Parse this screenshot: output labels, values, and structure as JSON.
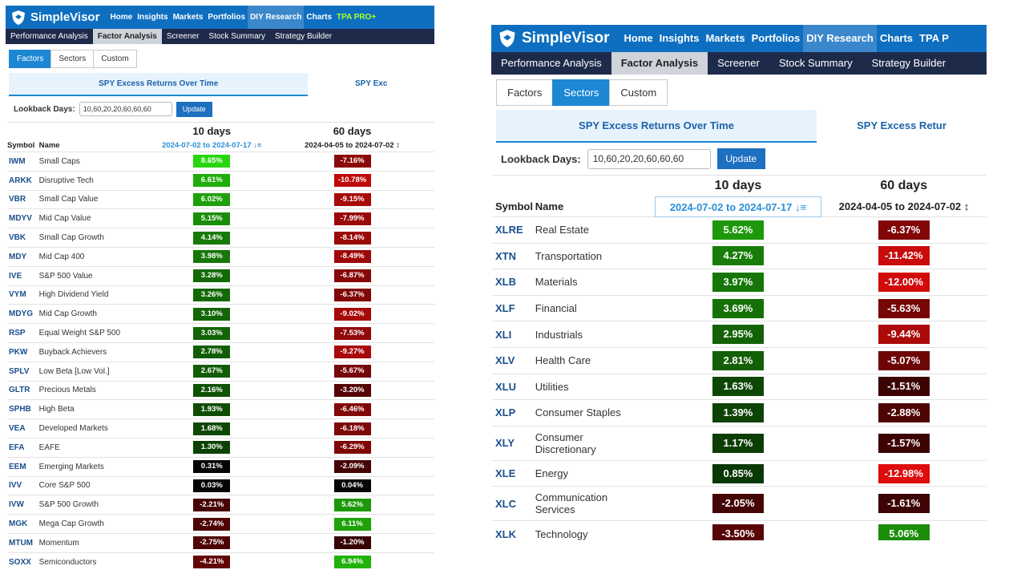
{
  "app": {
    "logo_text": "SimpleVisor",
    "nav": [
      {
        "label": "Home"
      },
      {
        "label": "Insights"
      },
      {
        "label": "Markets"
      },
      {
        "label": "Portfolios"
      },
      {
        "label": "DIY Research",
        "active": true
      },
      {
        "label": "Charts"
      }
    ],
    "nav_pro_left": "TPA PRO+",
    "nav_pro_right": "TPA P",
    "subnav": [
      {
        "label": "Performance Analysis"
      },
      {
        "label": "Factor Analysis",
        "active": true
      },
      {
        "label": "Screener"
      },
      {
        "label": "Stock Summary"
      },
      {
        "label": "Strategy Builder"
      }
    ],
    "accent": "#0e6fc0",
    "subnav_bg": "#1d2a4a"
  },
  "left": {
    "tabs": [
      {
        "label": "Factors",
        "active": true
      },
      {
        "label": "Sectors"
      },
      {
        "label": "Custom"
      }
    ],
    "view_tabs": [
      {
        "label": "SPY Excess Returns Over Time",
        "active": true
      },
      {
        "label": "SPY Exc"
      }
    ],
    "lookback": {
      "label": "Lookback Days:",
      "value": "10,60,20,20,60,60,60",
      "button": "Update"
    },
    "table": {
      "group_headers": [
        "10 days",
        "60 days"
      ],
      "col_symbol": "Symbol",
      "col_name": "Name",
      "date_range_1": "2024-07-02 to 2024-07-17",
      "date_range_2": "2024-04-05 to 2024-07-02",
      "rows": [
        {
          "symbol": "IWM",
          "name": "Small Caps",
          "r10": "8.65%",
          "r60": "-7.16%"
        },
        {
          "symbol": "ARKK",
          "name": "Disruptive Tech",
          "r10": "6.61%",
          "r60": "-10.78%"
        },
        {
          "symbol": "VBR",
          "name": "Small Cap Value",
          "r10": "6.02%",
          "r60": "-9.15%"
        },
        {
          "symbol": "MDYV",
          "name": "Mid Cap Value",
          "r10": "5.15%",
          "r60": "-7.99%"
        },
        {
          "symbol": "VBK",
          "name": "Small Cap Growth",
          "r10": "4.14%",
          "r60": "-8.14%"
        },
        {
          "symbol": "MDY",
          "name": "Mid Cap 400",
          "r10": "3.98%",
          "r60": "-8.49%"
        },
        {
          "symbol": "IVE",
          "name": "S&P 500 Value",
          "r10": "3.28%",
          "r60": "-6.87%"
        },
        {
          "symbol": "VYM",
          "name": "High Dividend Yield",
          "r10": "3.26%",
          "r60": "-6.37%"
        },
        {
          "symbol": "MDYG",
          "name": "Mid Cap Growth",
          "r10": "3.10%",
          "r60": "-9.02%"
        },
        {
          "symbol": "RSP",
          "name": "Equal Weight S&P 500",
          "r10": "3.03%",
          "r60": "-7.53%"
        },
        {
          "symbol": "PKW",
          "name": "Buyback Achievers",
          "r10": "2.78%",
          "r60": "-9.27%"
        },
        {
          "symbol": "SPLV",
          "name": "Low Beta [Low Vol.]",
          "r10": "2.67%",
          "r60": "-5.67%"
        },
        {
          "symbol": "GLTR",
          "name": "Precious Metals",
          "r10": "2.16%",
          "r60": "-3.20%"
        },
        {
          "symbol": "SPHB",
          "name": "High Beta",
          "r10": "1.93%",
          "r60": "-6.46%"
        },
        {
          "symbol": "VEA",
          "name": "Developed Markets",
          "r10": "1.68%",
          "r60": "-6.18%"
        },
        {
          "symbol": "EFA",
          "name": "EAFE",
          "r10": "1.30%",
          "r60": "-6.29%"
        },
        {
          "symbol": "EEM",
          "name": "Emerging Markets",
          "r10": "0.31%",
          "r60": "-2.09%"
        },
        {
          "symbol": "IVV",
          "name": "Core S&P 500",
          "r10": "0.03%",
          "r60": "0.04%"
        },
        {
          "symbol": "IVW",
          "name": "S&P 500 Growth",
          "r10": "-2.21%",
          "r60": "5.62%"
        },
        {
          "symbol": "MGK",
          "name": "Mega Cap Growth",
          "r10": "-2.74%",
          "r60": "6.11%"
        },
        {
          "symbol": "MTUM",
          "name": "Momentum",
          "r10": "-2.75%",
          "r60": "-1.20%"
        },
        {
          "symbol": "SOXX",
          "name": "Semiconductors",
          "r10": "-4.21%",
          "r60": "6.94%"
        }
      ]
    }
  },
  "right": {
    "tabs": [
      {
        "label": "Factors"
      },
      {
        "label": "Sectors",
        "active": true
      },
      {
        "label": "Custom"
      }
    ],
    "view_tabs": [
      {
        "label": "SPY Excess Returns Over Time",
        "active": true
      },
      {
        "label": "SPY Excess Retur"
      }
    ],
    "lookback": {
      "label": "Lookback Days:",
      "value": "10,60,20,20,60,60,60",
      "button": "Update"
    },
    "table": {
      "group_headers": [
        "10 days",
        "60 days"
      ],
      "col_symbol": "Symbol",
      "col_name": "Name",
      "date_range_1": "2024-07-02 to 2024-07-17",
      "date_range_2": "2024-04-05 to 2024-07-02",
      "rows": [
        {
          "symbol": "XLRE",
          "name": "Real Estate",
          "r10": "5.62%",
          "r60": "-6.37%"
        },
        {
          "symbol": "XTN",
          "name": "Transportation",
          "r10": "4.27%",
          "r60": "-11.42%"
        },
        {
          "symbol": "XLB",
          "name": "Materials",
          "r10": "3.97%",
          "r60": "-12.00%"
        },
        {
          "symbol": "XLF",
          "name": "Financial",
          "r10": "3.69%",
          "r60": "-5.63%"
        },
        {
          "symbol": "XLI",
          "name": "Industrials",
          "r10": "2.95%",
          "r60": "-9.44%"
        },
        {
          "symbol": "XLV",
          "name": "Health Care",
          "r10": "2.81%",
          "r60": "-5.07%"
        },
        {
          "symbol": "XLU",
          "name": "Utilities",
          "r10": "1.63%",
          "r60": "-1.51%"
        },
        {
          "symbol": "XLP",
          "name": "Consumer Staples",
          "r10": "1.39%",
          "r60": "-2.88%"
        },
        {
          "symbol": "XLY",
          "name": "Consumer Discretionary",
          "r10": "1.17%",
          "r60": "-1.57%"
        },
        {
          "symbol": "XLE",
          "name": "Energy",
          "r10": "0.85%",
          "r60": "-12.98%"
        },
        {
          "symbol": "XLC",
          "name": "Communication Services",
          "r10": "-2.05%",
          "r60": "-1.61%"
        },
        {
          "symbol": "XLK",
          "name": "Technology",
          "r10": "-3.50%",
          "r60": "5.06%"
        }
      ]
    }
  }
}
